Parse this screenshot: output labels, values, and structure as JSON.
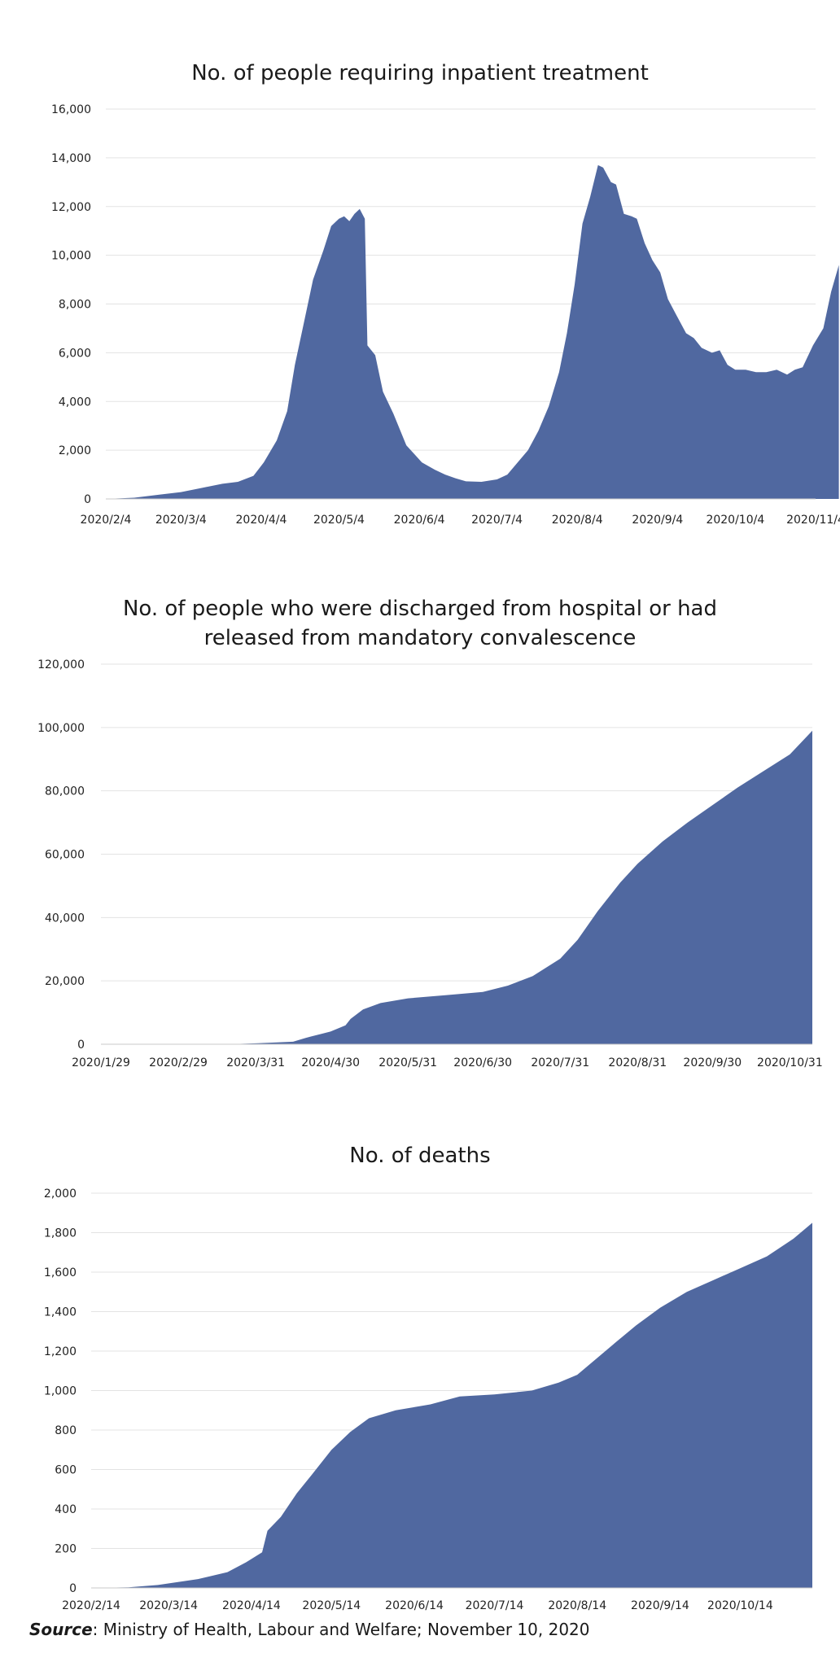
{
  "chart_data": [
    {
      "type": "area",
      "title": "No. of people requiring inpatient treatment",
      "color": "#5068A0",
      "ylim": [
        0,
        16000
      ],
      "y_ticks": [
        0,
        2000,
        4000,
        6000,
        8000,
        10000,
        12000,
        14000,
        16000
      ],
      "y_tick_labels": [
        "0",
        "2,000",
        "4,000",
        "6,000",
        "8,000",
        "10,000",
        "12,000",
        "14,000",
        "16,000"
      ],
      "x_tick_labels": [
        "2020/2/4",
        "2020/3/4",
        "2020/4/4",
        "2020/5/4",
        "2020/6/4",
        "2020/7/4",
        "2020/8/4",
        "2020/9/4",
        "2020/10/4",
        "2020/11/4"
      ],
      "x_ticks": [
        "2020-02-04",
        "2020-03-04",
        "2020-04-04",
        "2020-05-04",
        "2020-06-04",
        "2020-07-04",
        "2020-08-04",
        "2020-09-04",
        "2020-10-04",
        "2020-11-04"
      ],
      "x_range": [
        "2020-02-04",
        "2020-11-04"
      ],
      "points": [
        [
          "2020-02-04",
          0
        ],
        [
          "2020-02-15",
          50
        ],
        [
          "2020-02-25",
          180
        ],
        [
          "2020-03-04",
          280
        ],
        [
          "2020-03-12",
          450
        ],
        [
          "2020-03-20",
          620
        ],
        [
          "2020-03-26",
          700
        ],
        [
          "2020-04-01",
          950
        ],
        [
          "2020-04-05",
          1500
        ],
        [
          "2020-04-10",
          2400
        ],
        [
          "2020-04-14",
          3600
        ],
        [
          "2020-04-17",
          5500
        ],
        [
          "2020-04-20",
          7000
        ],
        [
          "2020-04-24",
          9000
        ],
        [
          "2020-04-28",
          10200
        ],
        [
          "2020-05-01",
          11200
        ],
        [
          "2020-05-04",
          11500
        ],
        [
          "2020-05-06",
          11600
        ],
        [
          "2020-05-08",
          11400
        ],
        [
          "2020-05-10",
          11700
        ],
        [
          "2020-05-12",
          11900
        ],
        [
          "2020-05-14",
          11500
        ],
        [
          "2020-05-15",
          6300
        ],
        [
          "2020-05-18",
          5900
        ],
        [
          "2020-05-21",
          4400
        ],
        [
          "2020-05-25",
          3500
        ],
        [
          "2020-05-30",
          2200
        ],
        [
          "2020-06-05",
          1500
        ],
        [
          "2020-06-10",
          1200
        ],
        [
          "2020-06-14",
          1000
        ],
        [
          "2020-06-18",
          850
        ],
        [
          "2020-06-22",
          720
        ],
        [
          "2020-06-28",
          700
        ],
        [
          "2020-07-04",
          800
        ],
        [
          "2020-07-08",
          1000
        ],
        [
          "2020-07-12",
          1500
        ],
        [
          "2020-07-16",
          2000
        ],
        [
          "2020-07-20",
          2800
        ],
        [
          "2020-07-24",
          3800
        ],
        [
          "2020-07-28",
          5200
        ],
        [
          "2020-07-31",
          6800
        ],
        [
          "2020-08-03",
          8800
        ],
        [
          "2020-08-06",
          11300
        ],
        [
          "2020-08-09",
          12400
        ],
        [
          "2020-08-12",
          13700
        ],
        [
          "2020-08-14",
          13600
        ],
        [
          "2020-08-17",
          13000
        ],
        [
          "2020-08-19",
          12900
        ],
        [
          "2020-08-22",
          11700
        ],
        [
          "2020-08-25",
          11600
        ],
        [
          "2020-08-27",
          11500
        ],
        [
          "2020-08-30",
          10500
        ],
        [
          "2020-09-02",
          9800
        ],
        [
          "2020-09-05",
          9300
        ],
        [
          "2020-09-08",
          8200
        ],
        [
          "2020-09-11",
          7600
        ],
        [
          "2020-09-15",
          6800
        ],
        [
          "2020-09-18",
          6600
        ],
        [
          "2020-09-21",
          6200
        ],
        [
          "2020-09-25",
          6000
        ],
        [
          "2020-09-28",
          6100
        ],
        [
          "2020-10-01",
          5500
        ],
        [
          "2020-10-04",
          5300
        ],
        [
          "2020-10-08",
          5300
        ],
        [
          "2020-10-12",
          5200
        ],
        [
          "2020-10-16",
          5200
        ],
        [
          "2020-10-20",
          5300
        ],
        [
          "2020-10-24",
          5100
        ],
        [
          "2020-10-27",
          5300
        ],
        [
          "2020-10-30",
          5400
        ],
        [
          "2020-11-03",
          6300
        ],
        [
          "2020-11-07",
          7000
        ],
        [
          "2020-11-10",
          8500
        ],
        [
          "2020-11-13",
          9600
        ]
      ]
    },
    {
      "type": "area",
      "title": "No. of people who were discharged from hospital or had released from mandatory convalescence",
      "title_lines": [
        "No. of people who were discharged from hospital or had",
        "released from mandatory convalescence"
      ],
      "color": "#5068A0",
      "ylim": [
        0,
        120000
      ],
      "y_ticks": [
        0,
        20000,
        40000,
        60000,
        80000,
        100000,
        120000
      ],
      "y_tick_labels": [
        "0",
        "20,000",
        "40,000",
        "60,000",
        "80,000",
        "100,000",
        "120,000"
      ],
      "x_tick_labels": [
        "2020/1/29",
        "2020/2/29",
        "2020/3/31",
        "2020/4/30",
        "2020/5/31",
        "2020/6/30",
        "2020/7/31",
        "2020/8/31",
        "2020/9/30",
        "2020/10/31"
      ],
      "x_ticks": [
        "2020-01-29",
        "2020-02-29",
        "2020-03-31",
        "2020-04-30",
        "2020-05-31",
        "2020-06-30",
        "2020-07-31",
        "2020-08-31",
        "2020-09-30",
        "2020-10-31"
      ],
      "x_range": [
        "2020-01-29",
        "2020-11-09"
      ],
      "points": [
        [
          "2020-01-29",
          0
        ],
        [
          "2020-03-20",
          0
        ],
        [
          "2020-04-01",
          300
        ],
        [
          "2020-04-15",
          800
        ],
        [
          "2020-04-20",
          2000
        ],
        [
          "2020-04-30",
          4000
        ],
        [
          "2020-05-06",
          6000
        ],
        [
          "2020-05-08",
          8000
        ],
        [
          "2020-05-13",
          11000
        ],
        [
          "2020-05-20",
          13000
        ],
        [
          "2020-05-31",
          14500
        ],
        [
          "2020-06-15",
          15500
        ],
        [
          "2020-06-30",
          16500
        ],
        [
          "2020-07-10",
          18500
        ],
        [
          "2020-07-20",
          21500
        ],
        [
          "2020-07-31",
          27000
        ],
        [
          "2020-08-07",
          33000
        ],
        [
          "2020-08-15",
          42000
        ],
        [
          "2020-08-24",
          51000
        ],
        [
          "2020-08-31",
          57000
        ],
        [
          "2020-09-10",
          64000
        ],
        [
          "2020-09-20",
          70000
        ],
        [
          "2020-09-30",
          75500
        ],
        [
          "2020-10-10",
          81000
        ],
        [
          "2020-10-20",
          86000
        ],
        [
          "2020-10-31",
          91500
        ],
        [
          "2020-11-09",
          99000
        ]
      ]
    },
    {
      "type": "area",
      "title": "No. of deaths",
      "color": "#5068A0",
      "ylim": [
        0,
        2000
      ],
      "y_ticks": [
        0,
        200,
        400,
        600,
        800,
        1000,
        1200,
        1400,
        1600,
        1800,
        2000
      ],
      "y_tick_labels": [
        "0",
        "200",
        "400",
        "600",
        "800",
        "1,000",
        "1,200",
        "1,400",
        "1,600",
        "1,800",
        "2,000"
      ],
      "x_tick_labels": [
        "2020/2/14",
        "2020/3/14",
        "2020/4/14",
        "2020/5/14",
        "2020/6/14",
        "2020/7/14",
        "2020/8/14",
        "2020/9/14",
        "2020/10/14"
      ],
      "x_ticks": [
        "2020-02-14",
        "2020-03-14",
        "2020-04-14",
        "2020-05-14",
        "2020-06-14",
        "2020-07-14",
        "2020-08-14",
        "2020-09-14",
        "2020-10-14"
      ],
      "x_range": [
        "2020-02-14",
        "2020-11-10"
      ],
      "points": [
        [
          "2020-02-14",
          0
        ],
        [
          "2020-02-28",
          3
        ],
        [
          "2020-03-10",
          15
        ],
        [
          "2020-03-25",
          45
        ],
        [
          "2020-04-05",
          80
        ],
        [
          "2020-04-12",
          130
        ],
        [
          "2020-04-18",
          180
        ],
        [
          "2020-04-20",
          290
        ],
        [
          "2020-04-25",
          360
        ],
        [
          "2020-05-01",
          480
        ],
        [
          "2020-05-07",
          580
        ],
        [
          "2020-05-14",
          700
        ],
        [
          "2020-05-21",
          790
        ],
        [
          "2020-05-28",
          860
        ],
        [
          "2020-06-07",
          900
        ],
        [
          "2020-06-20",
          930
        ],
        [
          "2020-07-01",
          970
        ],
        [
          "2020-07-14",
          980
        ],
        [
          "2020-07-28",
          1000
        ],
        [
          "2020-08-07",
          1040
        ],
        [
          "2020-08-14",
          1080
        ],
        [
          "2020-08-21",
          1160
        ],
        [
          "2020-08-28",
          1240
        ],
        [
          "2020-09-05",
          1330
        ],
        [
          "2020-09-14",
          1420
        ],
        [
          "2020-09-24",
          1500
        ],
        [
          "2020-10-04",
          1560
        ],
        [
          "2020-10-14",
          1620
        ],
        [
          "2020-10-24",
          1680
        ],
        [
          "2020-11-03",
          1770
        ],
        [
          "2020-11-10",
          1850
        ]
      ]
    }
  ],
  "source": {
    "label": "Source",
    "text": ": Ministry of Health, Labour and Welfare; November 10, 2020"
  }
}
